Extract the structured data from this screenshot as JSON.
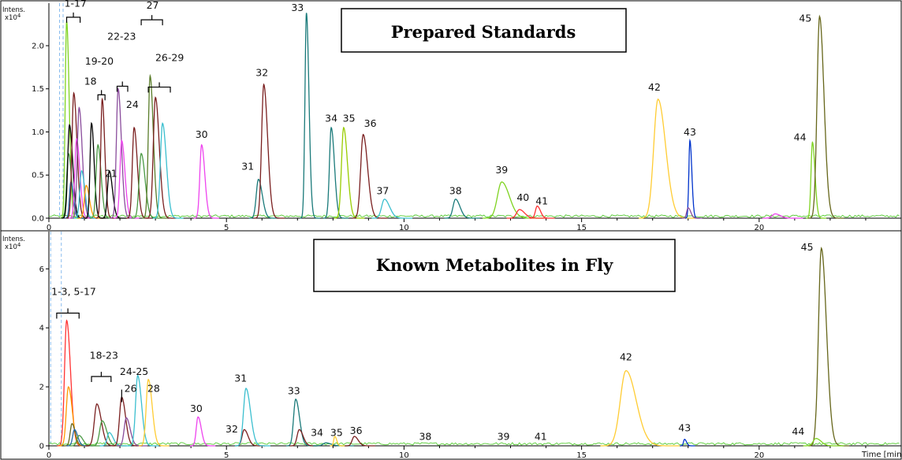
{
  "chart_data": [
    {
      "type": "line",
      "title": "Prepared Standards",
      "ylabel": "Intens.",
      "yunit": "x10^4",
      "xlabel": "",
      "xlim": [
        0,
        24
      ],
      "ylim": [
        0,
        2.42
      ],
      "xticks": [
        0,
        5,
        10,
        15,
        20
      ],
      "yticks": [
        0.0,
        0.5,
        1.0,
        1.5,
        2.0
      ],
      "ytick_labels": [
        "0.0",
        "0.5",
        "1.0",
        "1.5",
        "2.0"
      ],
      "grid": false,
      "dashed_lines": [
        0.3,
        0.4
      ],
      "colors": [
        "#7fd321",
        "#4a9a44",
        "#000000",
        "#ee44ee",
        "#ff9900",
        "#7a1f1f",
        "#1a7a7a",
        "#3bbfcf",
        "#99cc00",
        "#8a4d9c",
        "#0033cc",
        "#66661a",
        "#ff3333",
        "#ffcc33",
        "#5a7d2a",
        "#2266aa"
      ],
      "series": [
        {
          "peaks": [
            {
              "x": 0.5,
              "h": 2.28,
              "w": 0.04,
              "c": 0
            },
            {
              "x": 0.55,
              "h": 0.75,
              "w": 0.05,
              "c": 1
            },
            {
              "x": 0.58,
              "h": 1.08,
              "w": 0.05,
              "c": 2
            },
            {
              "x": 0.62,
              "h": 0.42,
              "w": 0.04,
              "c": 15
            },
            {
              "x": 0.7,
              "h": 1.45,
              "w": 0.05,
              "c": 5
            },
            {
              "x": 0.78,
              "h": 0.92,
              "w": 0.05,
              "c": 3
            },
            {
              "x": 0.85,
              "h": 1.28,
              "w": 0.05,
              "c": 9
            },
            {
              "x": 0.92,
              "h": 0.55,
              "w": 0.05,
              "c": 7
            },
            {
              "x": 1.05,
              "h": 0.38,
              "w": 0.05,
              "c": 4
            },
            {
              "x": 1.2,
              "h": 1.1,
              "w": 0.04,
              "c": 2
            },
            {
              "x": 1.38,
              "h": 0.85,
              "w": 0.05,
              "c": 1
            },
            {
              "x": 1.5,
              "h": 1.38,
              "w": 0.04,
              "c": 5
            },
            {
              "x": 1.7,
              "h": 0.55,
              "w": 0.05,
              "c": 2
            },
            {
              "x": 1.95,
              "h": 1.5,
              "w": 0.05,
              "c": 9
            },
            {
              "x": 2.05,
              "h": 0.9,
              "w": 0.05,
              "c": 3
            },
            {
              "x": 2.4,
              "h": 1.05,
              "w": 0.05,
              "c": 5
            },
            {
              "x": 2.6,
              "h": 0.75,
              "w": 0.06,
              "c": 1
            },
            {
              "x": 2.85,
              "h": 1.65,
              "w": 0.05,
              "c": 14
            },
            {
              "x": 3.0,
              "h": 1.4,
              "w": 0.06,
              "c": 5
            },
            {
              "x": 3.2,
              "h": 1.1,
              "w": 0.06,
              "c": 7
            },
            {
              "x": 4.3,
              "h": 0.85,
              "w": 0.05,
              "c": 3
            },
            {
              "x": 5.9,
              "h": 0.45,
              "w": 0.06,
              "c": 6
            },
            {
              "x": 6.05,
              "h": 1.55,
              "w": 0.06,
              "c": 5
            },
            {
              "x": 7.25,
              "h": 2.38,
              "w": 0.04,
              "c": 6
            },
            {
              "x": 7.95,
              "h": 1.05,
              "w": 0.05,
              "c": 6
            },
            {
              "x": 8.3,
              "h": 1.05,
              "w": 0.06,
              "c": 8
            },
            {
              "x": 8.85,
              "h": 0.97,
              "w": 0.07,
              "c": 5
            },
            {
              "x": 9.45,
              "h": 0.22,
              "w": 0.08,
              "c": 7
            },
            {
              "x": 11.45,
              "h": 0.22,
              "w": 0.07,
              "c": 6
            },
            {
              "x": 12.75,
              "h": 0.42,
              "w": 0.12,
              "c": 0
            },
            {
              "x": 13.25,
              "h": 0.1,
              "w": 0.08,
              "c": 12
            },
            {
              "x": 13.75,
              "h": 0.14,
              "w": 0.05,
              "c": 12
            },
            {
              "x": 17.15,
              "h": 1.38,
              "w": 0.12,
              "c": 13
            },
            {
              "x": 18.05,
              "h": 0.9,
              "w": 0.03,
              "c": 10
            },
            {
              "x": 18.0,
              "h": 0.12,
              "w": 0.04,
              "c": 9
            },
            {
              "x": 21.5,
              "h": 0.88,
              "w": 0.04,
              "c": 0
            },
            {
              "x": 21.7,
              "h": 2.34,
              "w": 0.07,
              "c": 11
            },
            {
              "x": 20.45,
              "h": 0.05,
              "w": 0.08,
              "c": 3
            }
          ]
        }
      ],
      "annotations": [
        {
          "text": "1-17",
          "x": 0.75,
          "y": 2.45
        },
        {
          "text": "27",
          "x": 2.92,
          "y": 2.43
        },
        {
          "text": "33",
          "x": 7.0,
          "y": 2.4
        },
        {
          "text": "19-20",
          "x": 1.42,
          "y": 1.78
        },
        {
          "text": "22-23",
          "x": 2.05,
          "y": 2.07
        },
        {
          "text": "26-29",
          "x": 3.4,
          "y": 1.82
        },
        {
          "text": "18",
          "x": 1.17,
          "y": 1.55
        },
        {
          "text": "32",
          "x": 6.0,
          "y": 1.65
        },
        {
          "text": "24",
          "x": 2.35,
          "y": 1.28
        },
        {
          "text": "30",
          "x": 4.3,
          "y": 0.93
        },
        {
          "text": "21",
          "x": 1.75,
          "y": 0.48
        },
        {
          "text": "31",
          "x": 5.6,
          "y": 0.56
        },
        {
          "text": "34",
          "x": 7.95,
          "y": 1.12
        },
        {
          "text": "35",
          "x": 8.45,
          "y": 1.12
        },
        {
          "text": "36",
          "x": 9.05,
          "y": 1.06
        },
        {
          "text": "37",
          "x": 9.4,
          "y": 0.28
        },
        {
          "text": "38",
          "x": 11.45,
          "y": 0.28
        },
        {
          "text": "39",
          "x": 12.75,
          "y": 0.52
        },
        {
          "text": "40",
          "x": 13.35,
          "y": 0.2
        },
        {
          "text": "41",
          "x": 13.88,
          "y": 0.16
        },
        {
          "text": "42",
          "x": 17.05,
          "y": 1.48
        },
        {
          "text": "43",
          "x": 18.05,
          "y": 0.96
        },
        {
          "text": "44",
          "x": 21.15,
          "y": 0.9
        },
        {
          "text": "45",
          "x": 21.3,
          "y": 2.28
        }
      ],
      "brackets": [
        {
          "x1": 0.5,
          "x2": 0.88,
          "y": 2.33
        },
        {
          "x1": 2.6,
          "x2": 3.2,
          "y": 2.3
        },
        {
          "x1": 1.38,
          "x2": 1.58,
          "y": 1.43
        },
        {
          "x1": 1.92,
          "x2": 2.22,
          "y": 1.53
        },
        {
          "x1": 2.8,
          "x2": 3.42,
          "y": 1.52
        }
      ]
    },
    {
      "type": "line",
      "title": "Known Metabolites in Fly",
      "ylabel": "Intens.",
      "yunit": "x10^4",
      "xlabel": "Time [min]",
      "xlim": [
        0,
        24
      ],
      "ylim": [
        0,
        7.05
      ],
      "xticks": [
        0,
        5,
        10,
        15,
        20
      ],
      "yticks": [
        0,
        2,
        4,
        6
      ],
      "ytick_labels": [
        "0",
        "2",
        "4",
        "6"
      ],
      "grid": false,
      "dashed_lines": [
        0.05,
        0.35
      ],
      "colors": [
        "#7fd321",
        "#4a9a44",
        "#000000",
        "#ee44ee",
        "#ff9900",
        "#7a1f1f",
        "#1a7a7a",
        "#3bbfcf",
        "#99cc00",
        "#8a4d9c",
        "#0033cc",
        "#66661a",
        "#ff3333",
        "#ffcc33",
        "#5a7d2a",
        "#2266aa"
      ],
      "series": [
        {
          "peaks": [
            {
              "x": 0.5,
              "h": 4.25,
              "w": 0.06,
              "c": 12
            },
            {
              "x": 0.55,
              "h": 2.0,
              "w": 0.06,
              "c": 4
            },
            {
              "x": 0.65,
              "h": 0.75,
              "w": 0.05,
              "c": 11
            },
            {
              "x": 0.72,
              "h": 0.55,
              "w": 0.05,
              "c": 15
            },
            {
              "x": 0.85,
              "h": 0.35,
              "w": 0.06,
              "c": 1
            },
            {
              "x": 1.35,
              "h": 1.42,
              "w": 0.07,
              "c": 5
            },
            {
              "x": 1.5,
              "h": 0.85,
              "w": 0.07,
              "c": 1
            },
            {
              "x": 1.7,
              "h": 0.45,
              "w": 0.06,
              "c": 7
            },
            {
              "x": 2.05,
              "h": 1.65,
              "w": 0.06,
              "c": 5
            },
            {
              "x": 2.18,
              "h": 0.95,
              "w": 0.06,
              "c": 9
            },
            {
              "x": 2.5,
              "h": 2.38,
              "w": 0.06,
              "c": 7
            },
            {
              "x": 2.8,
              "h": 2.25,
              "w": 0.06,
              "c": 13
            },
            {
              "x": 4.2,
              "h": 0.98,
              "w": 0.05,
              "c": 3
            },
            {
              "x": 5.5,
              "h": 0.55,
              "w": 0.06,
              "c": 5
            },
            {
              "x": 5.55,
              "h": 1.95,
              "w": 0.07,
              "c": 7
            },
            {
              "x": 6.95,
              "h": 1.58,
              "w": 0.06,
              "c": 6
            },
            {
              "x": 7.05,
              "h": 0.55,
              "w": 0.06,
              "c": 5
            },
            {
              "x": 7.8,
              "h": 0.1,
              "w": 0.08,
              "c": 6
            },
            {
              "x": 8.05,
              "h": 0.32,
              "w": 0.03,
              "c": 13
            },
            {
              "x": 8.6,
              "h": 0.32,
              "w": 0.06,
              "c": 5
            },
            {
              "x": 16.25,
              "h": 2.55,
              "w": 0.16,
              "c": 13
            },
            {
              "x": 17.9,
              "h": 0.22,
              "w": 0.03,
              "c": 10
            },
            {
              "x": 21.75,
              "h": 6.7,
              "w": 0.08,
              "c": 11
            },
            {
              "x": 21.6,
              "h": 0.25,
              "w": 0.08,
              "c": 0
            }
          ]
        }
      ],
      "annotations": [
        {
          "text": "1-3, 5-17",
          "x": 0.7,
          "y": 5.12
        },
        {
          "text": "18-23",
          "x": 1.55,
          "y": 2.95
        },
        {
          "text": "24-25",
          "x": 2.4,
          "y": 2.4
        },
        {
          "text": "26",
          "x": 2.3,
          "y": 1.83
        },
        {
          "text": "28",
          "x": 2.95,
          "y": 1.83
        },
        {
          "text": "30",
          "x": 4.15,
          "y": 1.15
        },
        {
          "text": "31",
          "x": 5.4,
          "y": 2.18
        },
        {
          "text": "32",
          "x": 5.15,
          "y": 0.45
        },
        {
          "text": "33",
          "x": 6.9,
          "y": 1.75
        },
        {
          "text": "34",
          "x": 7.55,
          "y": 0.33
        },
        {
          "text": "35",
          "x": 8.1,
          "y": 0.33
        },
        {
          "text": "36",
          "x": 8.65,
          "y": 0.4
        },
        {
          "text": "38",
          "x": 10.6,
          "y": 0.2
        },
        {
          "text": "39",
          "x": 12.8,
          "y": 0.2
        },
        {
          "text": "41",
          "x": 13.85,
          "y": 0.2
        },
        {
          "text": "42",
          "x": 16.25,
          "y": 2.9
        },
        {
          "text": "43",
          "x": 17.9,
          "y": 0.5
        },
        {
          "text": "44",
          "x": 21.1,
          "y": 0.37
        },
        {
          "text": "45",
          "x": 21.35,
          "y": 6.62
        }
      ],
      "brackets": [
        {
          "x1": 0.22,
          "x2": 0.85,
          "y": 4.5
        },
        {
          "x1": 1.2,
          "x2": 1.75,
          "y": 2.35
        },
        {
          "x1": 2.05,
          "x2": 2.05,
          "y": 1.8
        }
      ]
    }
  ]
}
